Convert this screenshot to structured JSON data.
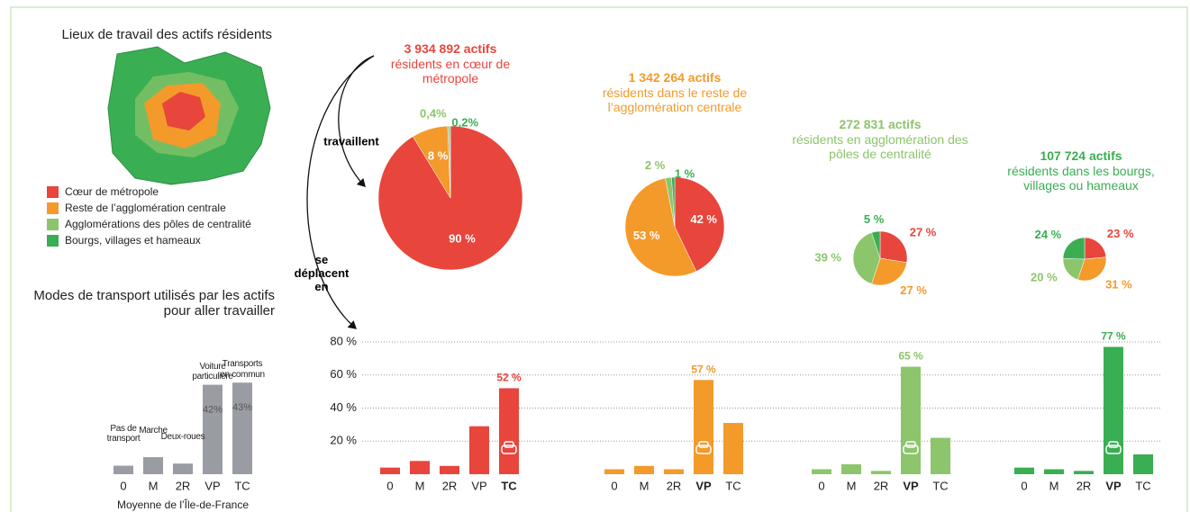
{
  "map_title": "Lieux de travail des actifs résidents",
  "legend": [
    {
      "label": "Cœur de métropole",
      "color": "#e8453c"
    },
    {
      "label": "Reste de l’agglomération centrale",
      "color": "#f39a2b"
    },
    {
      "label": "Agglomérations des pôles de centralité",
      "color": "#8cc56b"
    },
    {
      "label": "Bourgs, villages et hameaux",
      "color": "#3aae52"
    }
  ],
  "arrows": {
    "work": "travaillent",
    "move": "se déplacent en"
  },
  "modes_title": "Modes de transport utilisés par les actifs pour aller travailler",
  "chart_data": [
    {
      "type": "pie",
      "title": "3 934 892 actifs",
      "subtitle": "résidents en cœur de métropole",
      "title_color": "#e8453c",
      "values": [
        90,
        8,
        0.4,
        0.2
      ],
      "value_labels": [
        "90 %",
        "8 %",
        "0,4%",
        "0,2%"
      ],
      "colors": [
        "#e8453c",
        "#f39a2b",
        "#8cc56b",
        "#3aae52"
      ]
    },
    {
      "type": "pie",
      "title": "1 342 264 actifs",
      "subtitle": "résidents dans le reste de l’agglomération centrale",
      "title_color": "#f39a2b",
      "values": [
        42,
        53,
        2,
        1
      ],
      "value_labels": [
        "42 %",
        "53 %",
        "2 %",
        "1 %"
      ],
      "colors": [
        "#e8453c",
        "#f39a2b",
        "#8cc56b",
        "#3aae52"
      ]
    },
    {
      "type": "pie",
      "title": "272 831 actifs",
      "subtitle": "résidents en agglomération des pôles de centralité",
      "title_color": "#8cc56b",
      "values": [
        27,
        27,
        39,
        5
      ],
      "value_labels": [
        "27 %",
        "27 %",
        "39 %",
        "5 %"
      ],
      "colors": [
        "#e8453c",
        "#f39a2b",
        "#8cc56b",
        "#3aae52"
      ]
    },
    {
      "type": "pie",
      "title": "107 724 actifs",
      "subtitle": "résidents dans les bourgs, villages ou hameaux",
      "title_color": "#3aae52",
      "values": [
        23,
        31,
        20,
        24
      ],
      "value_labels": [
        "23 %",
        "31 %",
        "20 %",
        "24 %"
      ],
      "colors": [
        "#e8453c",
        "#f39a2b",
        "#8cc56b",
        "#3aae52"
      ]
    },
    {
      "type": "bar",
      "categories": [
        "0",
        "M",
        "2R",
        "VP",
        "TC"
      ],
      "values": [
        4,
        8,
        5,
        29,
        52
      ],
      "value_labels": [
        null,
        null,
        null,
        null,
        "52 %"
      ],
      "highlight": 4,
      "color": "#e8453c",
      "ylim": [
        0,
        80
      ],
      "yticks": [
        {
          "value": 20,
          "label": "20 %"
        },
        {
          "value": 40,
          "label": "40 %"
        },
        {
          "value": 60,
          "label": "60 %"
        },
        {
          "value": 80,
          "label": "80 %"
        }
      ],
      "grid": true
    },
    {
      "type": "bar",
      "categories": [
        "0",
        "M",
        "2R",
        "VP",
        "TC"
      ],
      "values": [
        3,
        5,
        3,
        57,
        31
      ],
      "value_labels": [
        null,
        null,
        null,
        "57 %",
        null
      ],
      "highlight": 3,
      "color": "#f39a2b",
      "ylim": [
        0,
        80
      ]
    },
    {
      "type": "bar",
      "categories": [
        "0",
        "M",
        "2R",
        "VP",
        "TC"
      ],
      "values": [
        3,
        6,
        2,
        65,
        22
      ],
      "value_labels": [
        null,
        null,
        null,
        "65 %",
        null
      ],
      "highlight": 3,
      "color": "#8cc56b",
      "ylim": [
        0,
        80
      ]
    },
    {
      "type": "bar",
      "categories": [
        "0",
        "M",
        "2R",
        "VP",
        "TC"
      ],
      "values": [
        4,
        3,
        2,
        77,
        12
      ],
      "value_labels": [
        null,
        null,
        null,
        "77 %",
        null
      ],
      "highlight": 3,
      "color": "#3aae52",
      "ylim": [
        0,
        80
      ]
    },
    {
      "type": "bar",
      "title": "Moyenne de l’Île-de-France",
      "categories": [
        "0",
        "M",
        "2R",
        "VP",
        "TC"
      ],
      "values": [
        4,
        8,
        5,
        42,
        43
      ],
      "value_labels": [
        null,
        null,
        null,
        "42%",
        "43%"
      ],
      "color": "#9a9ca3",
      "ylim": [
        0,
        60
      ],
      "annotations": [
        "Pas de transport",
        "Marche",
        "Deux-roues",
        "Voiture particulière",
        "Transports en commun"
      ]
    }
  ]
}
